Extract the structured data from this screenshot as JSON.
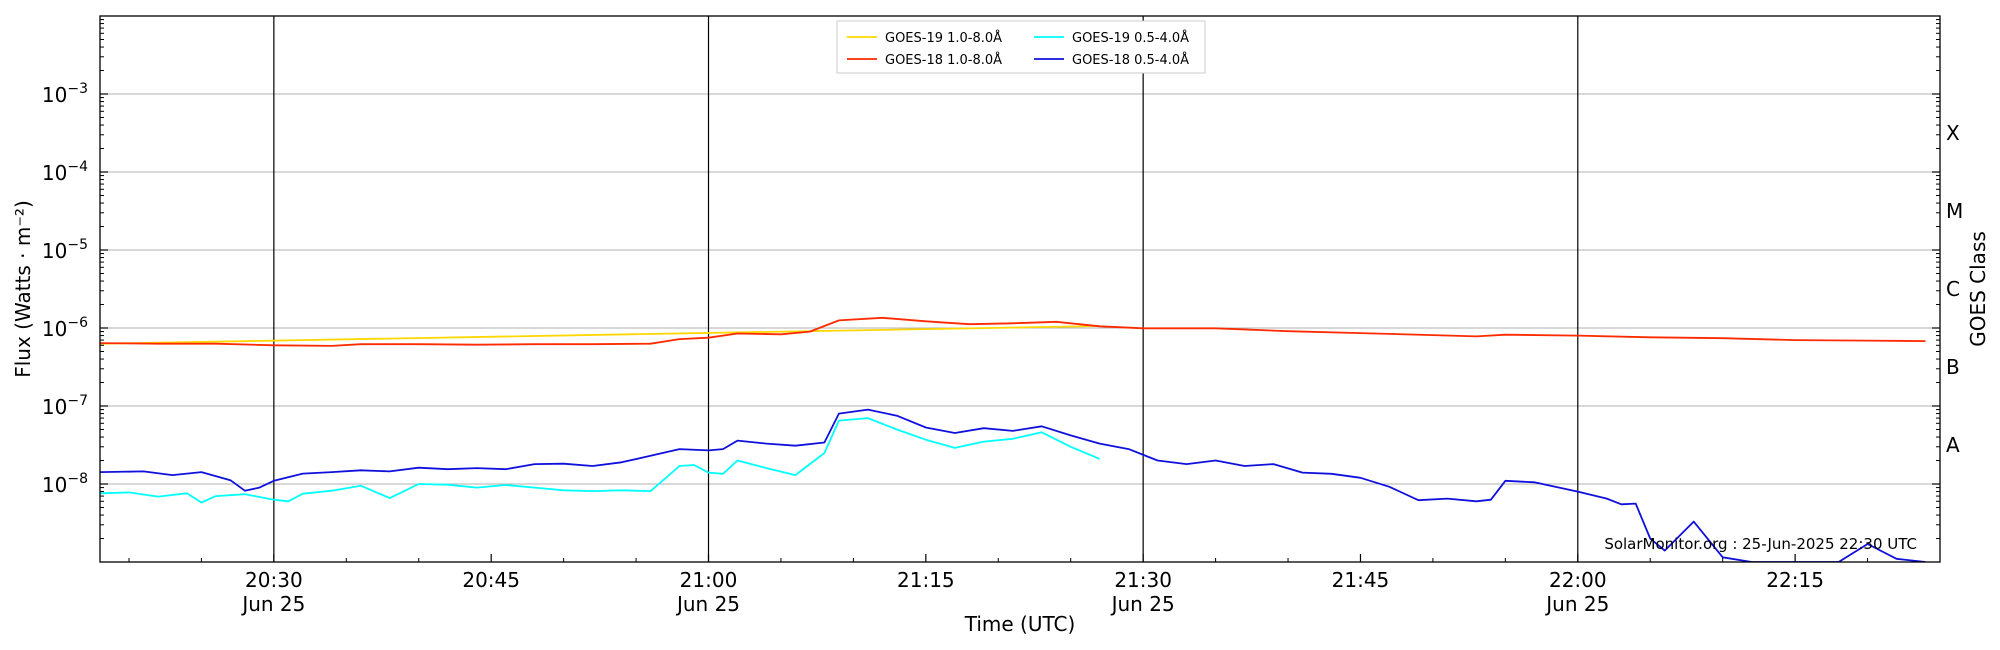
{
  "chart_data": {
    "type": "line",
    "xlabel": "Time (UTC)",
    "ylabel": "Flux (Watts · m⁻²)",
    "right_label": "GOES Class",
    "footer": "SolarMonitor.org : 25-Jun-2025 22:30 UTC",
    "scale": "log",
    "grid": "horizontal",
    "legend_position": "top-center",
    "xlim": [
      "20:18",
      "22:25"
    ],
    "ylim_log10": [
      -9,
      -2
    ],
    "x_ticks": [
      {
        "t": "20:30",
        "label": "20:30",
        "sub": "Jun 25",
        "vline": true
      },
      {
        "t": "20:45",
        "label": "20:45",
        "sub": "",
        "vline": false
      },
      {
        "t": "21:00",
        "label": "21:00",
        "sub": "Jun 25",
        "vline": true
      },
      {
        "t": "21:15",
        "label": "21:15",
        "sub": "",
        "vline": false
      },
      {
        "t": "21:30",
        "label": "21:30",
        "sub": "Jun 25",
        "vline": true
      },
      {
        "t": "21:45",
        "label": "21:45",
        "sub": "",
        "vline": false
      },
      {
        "t": "22:00",
        "label": "22:00",
        "sub": "Jun 25",
        "vline": true
      },
      {
        "t": "22:15",
        "label": "22:15",
        "sub": "",
        "vline": false
      }
    ],
    "y_ticks": [
      {
        "exp": -8,
        "label": "10",
        "sup": "−8"
      },
      {
        "exp": -7,
        "label": "10",
        "sup": "−7"
      },
      {
        "exp": -6,
        "label": "10",
        "sup": "−6"
      },
      {
        "exp": -5,
        "label": "10",
        "sup": "−5"
      },
      {
        "exp": -4,
        "label": "10",
        "sup": "−4"
      },
      {
        "exp": -3,
        "label": "10",
        "sup": "−3"
      }
    ],
    "goes_classes": [
      {
        "label": "A",
        "exp": -7.5
      },
      {
        "label": "B",
        "exp": -6.5
      },
      {
        "label": "C",
        "exp": -5.5
      },
      {
        "label": "M",
        "exp": -4.5
      },
      {
        "label": "X",
        "exp": -3.5
      }
    ],
    "series": [
      {
        "name": "GOES-19 1.0-8.0Å",
        "color": "#ffd700",
        "x": [
          "20:18",
          "21:27"
        ],
        "y": [
          6.3e-07,
          1.06e-06
        ]
      },
      {
        "name": "GOES-18 1.0-8.0Å",
        "color": "#ff2a00",
        "x": [
          "20:18",
          "20:22",
          "20:26",
          "20:30",
          "20:34",
          "20:36",
          "20:40",
          "20:44",
          "20:48",
          "20:52",
          "20:56",
          "20:58",
          "21:00",
          "21:02",
          "21:05",
          "21:07",
          "21:09",
          "21:12",
          "21:15",
          "21:18",
          "21:21",
          "21:24",
          "21:27",
          "21:30",
          "21:35",
          "21:40",
          "21:45",
          "21:50",
          "21:53",
          "21:55",
          "22:00",
          "22:05",
          "22:10",
          "22:15",
          "22:20",
          "22:24"
        ],
        "y": [
          6.4e-07,
          6.3e-07,
          6.3e-07,
          6e-07,
          5.9e-07,
          6.2e-07,
          6.2e-07,
          6.1e-07,
          6.2e-07,
          6.2e-07,
          6.3e-07,
          7.2e-07,
          7.5e-07,
          8.5e-07,
          8.3e-07,
          9e-07,
          1.25e-06,
          1.35e-06,
          1.22e-06,
          1.12e-06,
          1.15e-06,
          1.2e-06,
          1.05e-06,
          9.9e-07,
          9.9e-07,
          9.1e-07,
          8.6e-07,
          8.1e-07,
          7.8e-07,
          8.2e-07,
          8e-07,
          7.6e-07,
          7.4e-07,
          7e-07,
          6.9e-07,
          6.8e-07
        ]
      },
      {
        "name": "GOES-19 0.5-4.0Å",
        "color": "#00ffff",
        "x": [
          "20:18",
          "20:20",
          "20:22",
          "20:24",
          "20:25",
          "20:26",
          "20:28",
          "20:30",
          "20:31",
          "20:32",
          "20:34",
          "20:36",
          "20:38",
          "20:40",
          "20:42",
          "20:44",
          "20:46",
          "20:48",
          "20:50",
          "20:52",
          "20:54",
          "20:56",
          "20:58",
          "20:59",
          "21:00",
          "21:01",
          "21:02",
          "21:04",
          "21:06",
          "21:08",
          "21:09",
          "21:11",
          "21:13",
          "21:15",
          "21:17",
          "21:19",
          "21:21",
          "21:23",
          "21:25",
          "21:27"
        ],
        "y": [
          7.6e-09,
          7.8e-09,
          6.9e-09,
          7.6e-09,
          5.8e-09,
          7e-09,
          7.4e-09,
          6.3e-09,
          6e-09,
          7.5e-09,
          8.2e-09,
          9.5e-09,
          6.6e-09,
          1e-08,
          9.8e-09,
          9e-09,
          9.7e-09,
          9e-09,
          8.3e-09,
          8.1e-09,
          8.3e-09,
          8.1e-09,
          1.7e-08,
          1.75e-08,
          1.4e-08,
          1.35e-08,
          2e-08,
          1.6e-08,
          1.3e-08,
          2.5e-08,
          6.5e-08,
          7e-08,
          5e-08,
          3.7e-08,
          2.9e-08,
          3.5e-08,
          3.8e-08,
          4.6e-08,
          3e-08,
          2.1e-08
        ]
      },
      {
        "name": "GOES-18 0.5-4.0Å",
        "color": "#1010dd",
        "x": [
          "20:18",
          "20:21",
          "20:23",
          "20:25",
          "20:27",
          "20:28",
          "20:29",
          "20:30",
          "20:32",
          "20:34",
          "20:36",
          "20:38",
          "20:40",
          "20:42",
          "20:44",
          "20:46",
          "20:48",
          "20:50",
          "20:52",
          "20:54",
          "20:56",
          "20:58",
          "21:00",
          "21:01",
          "21:02",
          "21:04",
          "21:06",
          "21:08",
          "21:09",
          "21:11",
          "21:13",
          "21:15",
          "21:17",
          "21:19",
          "21:21",
          "21:23",
          "21:25",
          "21:27",
          "21:29",
          "21:31",
          "21:33",
          "21:35",
          "21:37",
          "21:39",
          "21:41",
          "21:43",
          "21:45",
          "21:47",
          "21:49",
          "21:51",
          "21:53",
          "21:54",
          "21:55",
          "21:57",
          "22:00",
          "22:02",
          "22:03",
          "22:04",
          "22:05",
          "22:06",
          "22:08",
          "22:10",
          "22:12",
          "22:16",
          "22:18",
          "22:20",
          "22:22",
          "22:24"
        ],
        "y": [
          1.42e-08,
          1.45e-08,
          1.3e-08,
          1.42e-08,
          1.12e-08,
          8.2e-09,
          9e-09,
          1.1e-08,
          1.36e-08,
          1.42e-08,
          1.5e-08,
          1.45e-08,
          1.62e-08,
          1.55e-08,
          1.6e-08,
          1.55e-08,
          1.8e-08,
          1.82e-08,
          1.7e-08,
          1.9e-08,
          2.3e-08,
          2.8e-08,
          2.7e-08,
          2.8e-08,
          3.6e-08,
          3.3e-08,
          3.1e-08,
          3.4e-08,
          8e-08,
          9e-08,
          7.5e-08,
          5.3e-08,
          4.5e-08,
          5.2e-08,
          4.8e-08,
          5.5e-08,
          4.2e-08,
          3.3e-08,
          2.8e-08,
          2e-08,
          1.8e-08,
          2e-08,
          1.7e-08,
          1.8e-08,
          1.4e-08,
          1.35e-08,
          1.2e-08,
          9.2e-09,
          6.2e-09,
          6.5e-09,
          6e-09,
          6.3e-09,
          1.1e-08,
          1.05e-08,
          8e-09,
          6.5e-09,
          5.5e-09,
          5.6e-09,
          2e-09,
          1.4e-09,
          3.3e-09,
          1.15e-09,
          1e-09,
          1e-09,
          1e-09,
          1.7e-09,
          1.1e-09,
          1e-09
        ]
      }
    ]
  }
}
